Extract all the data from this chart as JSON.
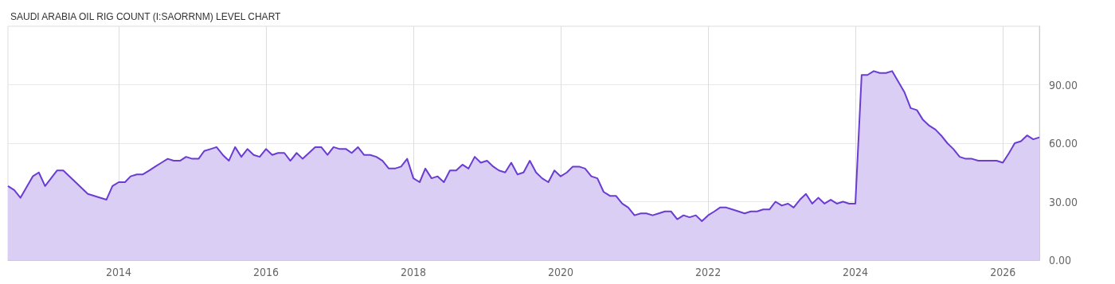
{
  "chart_data": {
    "type": "area",
    "title": "SAUDI ARABIA OIL RIG COUNT (I:SAORRNM) LEVEL CHART",
    "series": [
      {
        "color": "#6a3cd2",
        "x": [
          "2012-07",
          "2012-08",
          "2012-09",
          "2012-11",
          "2012-12",
          "2013-01",
          "2013-03",
          "2013-04",
          "2013-08",
          "2013-11",
          "2013-12",
          "2014-01",
          "2014-02",
          "2014-03",
          "2014-04",
          "2014-05",
          "2014-06",
          "2014-07",
          "2014-08",
          "2014-09",
          "2014-10",
          "2014-11",
          "2014-12",
          "2015-01",
          "2015-02",
          "2015-03",
          "2015-04",
          "2015-05",
          "2015-06",
          "2015-07",
          "2015-08",
          "2015-09",
          "2015-10",
          "2015-11",
          "2015-12",
          "2016-01",
          "2016-02",
          "2016-03",
          "2016-04",
          "2016-05",
          "2016-06",
          "2016-07",
          "2016-08",
          "2016-09",
          "2016-10",
          "2016-11",
          "2016-12",
          "2017-01",
          "2017-02",
          "2017-03",
          "2017-04",
          "2017-05",
          "2017-06",
          "2017-07",
          "2017-08",
          "2017-09",
          "2017-10",
          "2017-11",
          "2017-12",
          "2018-01",
          "2018-02",
          "2018-03",
          "2018-04",
          "2018-05",
          "2018-06",
          "2018-07",
          "2018-08",
          "2018-09",
          "2018-10",
          "2018-11",
          "2018-12",
          "2019-01",
          "2019-02",
          "2019-03",
          "2019-04",
          "2019-05",
          "2019-06",
          "2019-07",
          "2019-08",
          "2019-09",
          "2019-10",
          "2019-11",
          "2019-12",
          "2020-01",
          "2020-02",
          "2020-03",
          "2020-04",
          "2020-05",
          "2020-06",
          "2020-07",
          "2020-08",
          "2020-09",
          "2020-10",
          "2020-11",
          "2020-12",
          "2021-01",
          "2021-02",
          "2021-03",
          "2021-04",
          "2021-05",
          "2021-06",
          "2021-07",
          "2021-08",
          "2021-09",
          "2021-10",
          "2021-11",
          "2021-12",
          "2022-01",
          "2022-02",
          "2022-03",
          "2022-04",
          "2022-05",
          "2022-06",
          "2022-07",
          "2022-08",
          "2022-09",
          "2022-10",
          "2022-11",
          "2022-12",
          "2023-01",
          "2023-02",
          "2023-03",
          "2023-04",
          "2023-05",
          "2023-06",
          "2023-07",
          "2023-08",
          "2023-09",
          "2023-10",
          "2023-11",
          "2023-12",
          "2024-01",
          "2024-02",
          "2024-03",
          "2024-04",
          "2024-05",
          "2024-06",
          "2024-07",
          "2024-09",
          "2024-10",
          "2024-11",
          "2024-12",
          "2025-01",
          "2025-02",
          "2025-03",
          "2025-04",
          "2025-05",
          "2025-06",
          "2025-07",
          "2025-08",
          "2025-09",
          "2025-10",
          "2025-11",
          "2025-12",
          "2026-01",
          "2026-02",
          "2026-03",
          "2026-04",
          "2026-05",
          "2026-06",
          "2026-07"
        ],
        "values": [
          38,
          36,
          32,
          43,
          45,
          38,
          46,
          46,
          34,
          31,
          38,
          40,
          40,
          43,
          44,
          44,
          46,
          48,
          50,
          52,
          51,
          51,
          53,
          52,
          52,
          56,
          57,
          58,
          54,
          51,
          58,
          53,
          57,
          54,
          53,
          57,
          54,
          55,
          55,
          51,
          55,
          52,
          55,
          58,
          58,
          54,
          58,
          57,
          57,
          55,
          58,
          54,
          54,
          53,
          51,
          47,
          47,
          48,
          52,
          42,
          40,
          47,
          42,
          43,
          40,
          46,
          46,
          49,
          47,
          53,
          50,
          51,
          48,
          46,
          45,
          50,
          44,
          45,
          51,
          45,
          42,
          40,
          46,
          43,
          45,
          48,
          48,
          47,
          43,
          42,
          35,
          33,
          33,
          29,
          27,
          23,
          24,
          24,
          23,
          24,
          25,
          25,
          21,
          23,
          22,
          23,
          20,
          23,
          25,
          27,
          27,
          26,
          25,
          24,
          25,
          25,
          26,
          26,
          30,
          28,
          29,
          27,
          31,
          34,
          29,
          32,
          29,
          31,
          29,
          30,
          29,
          29,
          95,
          95,
          97,
          96,
          96,
          97,
          86,
          78,
          77,
          72,
          69,
          67,
          64,
          60,
          57,
          53,
          52,
          52,
          51,
          51,
          51,
          51,
          50,
          55,
          60,
          61,
          64,
          62,
          63
        ]
      }
    ],
    "xlim": [
      "2012-07",
      "2026-07"
    ],
    "xticks": [
      "2014",
      "2016",
      "2018",
      "2020",
      "2022",
      "2024",
      "2026"
    ],
    "ylim": [
      0,
      120
    ],
    "yticks": [
      {
        "value": 0,
        "label": "0.00"
      },
      {
        "value": 30,
        "label": "30.00"
      },
      {
        "value": 60,
        "label": "60.00"
      },
      {
        "value": 90,
        "label": "90.00"
      }
    ],
    "grid": true,
    "marker": "none"
  }
}
